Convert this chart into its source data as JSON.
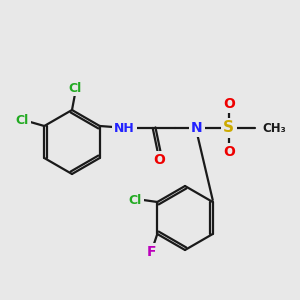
{
  "background_color": "#e8e8e8",
  "bond_color": "#1a1a1a",
  "atom_colors": {
    "Cl": "#22aa22",
    "N": "#2222ff",
    "O": "#ee0000",
    "S": "#ccaa00",
    "F": "#bb00bb",
    "C": "#1a1a1a"
  },
  "figsize": [
    3.0,
    3.0
  ],
  "dpi": 100
}
